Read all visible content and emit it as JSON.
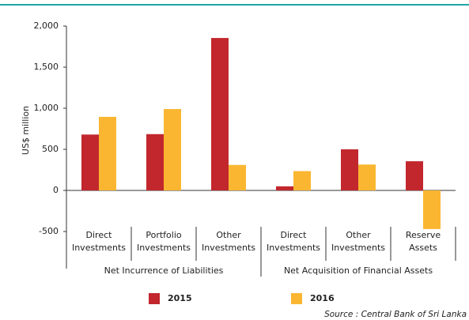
{
  "chart_data": {
    "type": "bar",
    "y_axis_label": "US$ million",
    "categories": [
      "Direct Investments",
      "Portfolio Investments",
      "Other Investments",
      "Direct Investments",
      "Other Investments",
      "Reserve Assets"
    ],
    "groups": [
      "Net Incurrence of Liabilities",
      "Net Acquisition of Financial Assets"
    ],
    "series": [
      {
        "name": "2015",
        "color": "#c1272d",
        "values": [
          680,
          685,
          1855,
          50,
          500,
          355
        ]
      },
      {
        "name": "2016",
        "color": "#fbb631",
        "values": [
          895,
          990,
          310,
          235,
          315,
          -470
        ]
      }
    ],
    "ylim": [
      -500,
      2000
    ],
    "yticks": [
      -500,
      0,
      500,
      {
        "value": 1000,
        "label": "1,000"
      },
      {
        "value": 1500,
        "label": "1,500"
      },
      {
        "value": 2000,
        "label": "2,000"
      }
    ],
    "grid": false,
    "source": "Source : Central Bank of Sri Lanka"
  }
}
